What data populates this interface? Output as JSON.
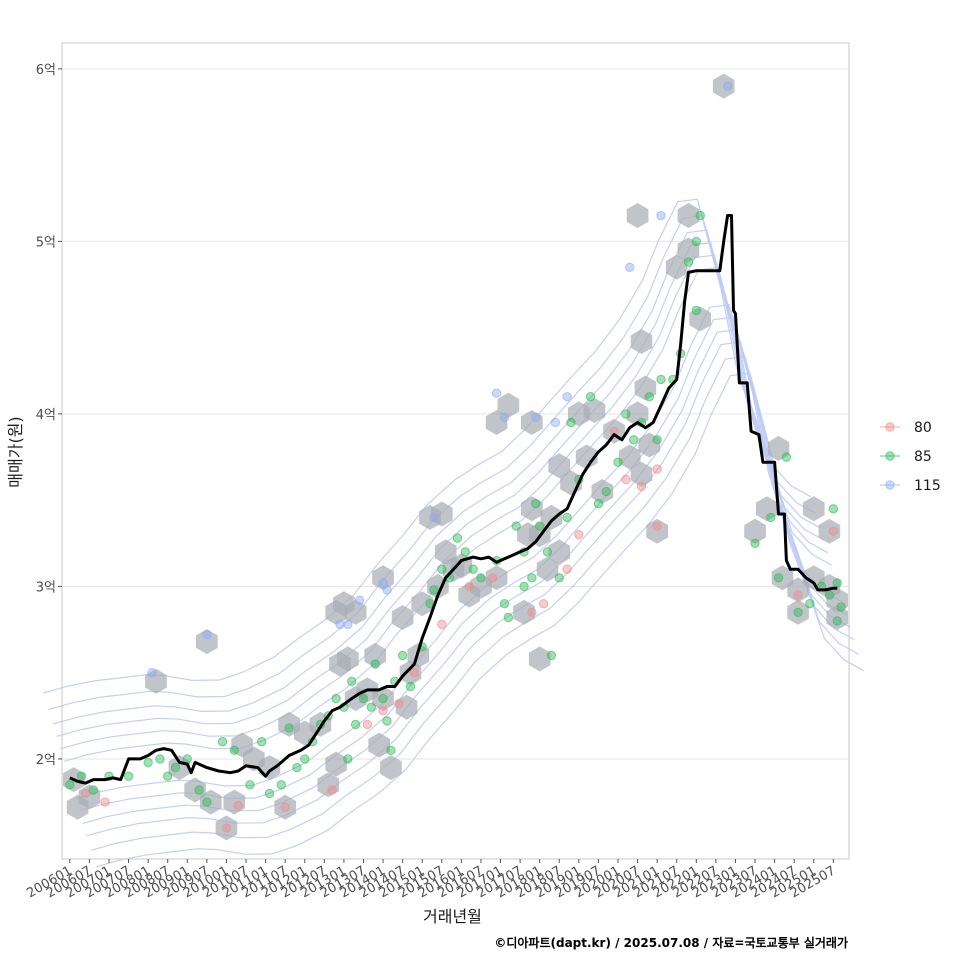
{
  "chart_data": {
    "type": "scatter",
    "title": "",
    "xlabel": "거래년월",
    "ylabel": "매매가(원)",
    "caption": "©디아파트(dapt.kr) / 2025.07.08 / 자료=국토교통부 실거래가",
    "x_ticks": [
      "200601",
      "200607",
      "200701",
      "200707",
      "200801",
      "200807",
      "200901",
      "200907",
      "201001",
      "201007",
      "201101",
      "201107",
      "201201",
      "201207",
      "201301",
      "201307",
      "201401",
      "201407",
      "201501",
      "201507",
      "201601",
      "201607",
      "201701",
      "201707",
      "201801",
      "201807",
      "201901",
      "201907",
      "202001",
      "202007",
      "202101",
      "202107",
      "202201",
      "202207",
      "202301",
      "202307",
      "202401",
      "202407",
      "202501",
      "202507"
    ],
    "y_ticks": [
      {
        "value": 2,
        "label": "2억"
      },
      {
        "value": 3,
        "label": "3억"
      },
      {
        "value": 4,
        "label": "4억"
      },
      {
        "value": 5,
        "label": "5억"
      },
      {
        "value": 6,
        "label": "6억"
      }
    ],
    "x_range": [
      2005.8,
      2025.9
    ],
    "y_range": [
      1.42,
      6.15
    ],
    "grid": true,
    "legend_position": "right",
    "legend": [
      {
        "name": "80",
        "color": "#f08a8a"
      },
      {
        "name": "85",
        "color": "#2dbb55"
      },
      {
        "name": "115",
        "color": "#8aaaf5"
      }
    ],
    "colors": {
      "hexbin": "#a7adb3",
      "contour": "#bccbf5",
      "trend": "#000000"
    },
    "trend_line": [
      [
        2006.0,
        1.89
      ],
      [
        2006.2,
        1.87
      ],
      [
        2006.4,
        1.86
      ],
      [
        2006.6,
        1.88
      ],
      [
        2006.9,
        1.88
      ],
      [
        2007.1,
        1.89
      ],
      [
        2007.3,
        1.88
      ],
      [
        2007.5,
        2.0
      ],
      [
        2007.8,
        2.0
      ],
      [
        2008.0,
        2.02
      ],
      [
        2008.2,
        2.05
      ],
      [
        2008.4,
        2.06
      ],
      [
        2008.6,
        2.05
      ],
      [
        2008.8,
        1.98
      ],
      [
        2009.0,
        1.97
      ],
      [
        2009.1,
        1.92
      ],
      [
        2009.2,
        1.98
      ],
      [
        2009.5,
        1.95
      ],
      [
        2009.8,
        1.93
      ],
      [
        2010.1,
        1.92
      ],
      [
        2010.3,
        1.93
      ],
      [
        2010.5,
        1.96
      ],
      [
        2010.8,
        1.95
      ],
      [
        2011.0,
        1.9
      ],
      [
        2011.1,
        1.93
      ],
      [
        2011.3,
        1.96
      ],
      [
        2011.6,
        2.02
      ],
      [
        2011.9,
        2.05
      ],
      [
        2012.1,
        2.08
      ],
      [
        2012.3,
        2.15
      ],
      [
        2012.5,
        2.22
      ],
      [
        2012.7,
        2.28
      ],
      [
        2012.9,
        2.3
      ],
      [
        2013.2,
        2.35
      ],
      [
        2013.4,
        2.38
      ],
      [
        2013.6,
        2.4
      ],
      [
        2013.9,
        2.4
      ],
      [
        2014.1,
        2.42
      ],
      [
        2014.3,
        2.42
      ],
      [
        2014.5,
        2.48
      ],
      [
        2014.8,
        2.55
      ],
      [
        2015.0,
        2.7
      ],
      [
        2015.2,
        2.82
      ],
      [
        2015.4,
        2.95
      ],
      [
        2015.6,
        3.05
      ],
      [
        2015.8,
        3.1
      ],
      [
        2016.0,
        3.15
      ],
      [
        2016.3,
        3.17
      ],
      [
        2016.5,
        3.16
      ],
      [
        2016.7,
        3.17
      ],
      [
        2016.9,
        3.14
      ],
      [
        2017.1,
        3.16
      ],
      [
        2017.3,
        3.18
      ],
      [
        2017.5,
        3.2
      ],
      [
        2017.7,
        3.22
      ],
      [
        2017.9,
        3.26
      ],
      [
        2018.1,
        3.32
      ],
      [
        2018.3,
        3.38
      ],
      [
        2018.5,
        3.42
      ],
      [
        2018.7,
        3.45
      ],
      [
        2018.9,
        3.55
      ],
      [
        2019.1,
        3.65
      ],
      [
        2019.3,
        3.72
      ],
      [
        2019.5,
        3.78
      ],
      [
        2019.7,
        3.82
      ],
      [
        2019.9,
        3.88
      ],
      [
        2020.1,
        3.85
      ],
      [
        2020.3,
        3.92
      ],
      [
        2020.5,
        3.95
      ],
      [
        2020.7,
        3.92
      ],
      [
        2020.9,
        3.95
      ],
      [
        2021.1,
        4.05
      ],
      [
        2021.3,
        4.15
      ],
      [
        2021.5,
        4.2
      ],
      [
        2021.6,
        4.4
      ],
      [
        2021.7,
        4.65
      ],
      [
        2021.8,
        4.82
      ],
      [
        2022.0,
        4.83
      ],
      [
        2022.2,
        4.83
      ],
      [
        2022.4,
        4.83
      ],
      [
        2022.6,
        4.83
      ],
      [
        2022.7,
        5.0
      ],
      [
        2022.8,
        5.15
      ],
      [
        2022.9,
        5.15
      ],
      [
        2022.95,
        4.6
      ],
      [
        2023.0,
        4.58
      ],
      [
        2023.1,
        4.18
      ],
      [
        2023.3,
        4.18
      ],
      [
        2023.4,
        3.9
      ],
      [
        2023.6,
        3.88
      ],
      [
        2023.7,
        3.72
      ],
      [
        2024.0,
        3.72
      ],
      [
        2024.1,
        3.42
      ],
      [
        2024.25,
        3.42
      ],
      [
        2024.3,
        3.15
      ],
      [
        2024.4,
        3.1
      ],
      [
        2024.6,
        3.1
      ],
      [
        2024.8,
        3.05
      ],
      [
        2025.0,
        3.02
      ],
      [
        2025.1,
        2.98
      ],
      [
        2025.3,
        2.98
      ],
      [
        2025.5,
        2.99
      ],
      [
        2025.6,
        2.99
      ]
    ],
    "hexbins": [
      [
        2006.1,
        1.88
      ],
      [
        2006.5,
        1.78
      ],
      [
        2006.2,
        1.72
      ],
      [
        2008.2,
        2.45
      ],
      [
        2009.5,
        2.68
      ],
      [
        2008.8,
        1.95
      ],
      [
        2009.2,
        1.82
      ],
      [
        2009.6,
        1.75
      ],
      [
        2010.0,
        1.6
      ],
      [
        2010.2,
        1.75
      ],
      [
        2010.4,
        2.08
      ],
      [
        2010.7,
        2.0
      ],
      [
        2011.1,
        1.95
      ],
      [
        2011.5,
        1.72
      ],
      [
        2011.6,
        2.2
      ],
      [
        2012.0,
        2.15
      ],
      [
        2012.4,
        2.2
      ],
      [
        2012.6,
        1.85
      ],
      [
        2012.8,
        1.97
      ],
      [
        2012.8,
        2.85
      ],
      [
        2013.0,
        2.9
      ],
      [
        2013.3,
        2.85
      ],
      [
        2012.9,
        2.55
      ],
      [
        2013.1,
        2.58
      ],
      [
        2013.3,
        2.35
      ],
      [
        2013.6,
        2.4
      ],
      [
        2013.8,
        2.6
      ],
      [
        2014.0,
        2.35
      ],
      [
        2013.9,
        2.08
      ],
      [
        2014.2,
        1.95
      ],
      [
        2014.0,
        3.05
      ],
      [
        2014.5,
        2.82
      ],
      [
        2014.7,
        2.5
      ],
      [
        2014.6,
        2.3
      ],
      [
        2014.9,
        2.6
      ],
      [
        2015.0,
        2.9
      ],
      [
        2015.2,
        3.4
      ],
      [
        2015.5,
        3.42
      ],
      [
        2015.6,
        3.2
      ],
      [
        2015.4,
        3.0
      ],
      [
        2015.8,
        3.1
      ],
      [
        2016.0,
        3.12
      ],
      [
        2016.2,
        2.95
      ],
      [
        2016.5,
        3.0
      ],
      [
        2016.9,
        3.05
      ],
      [
        2016.9,
        3.95
      ],
      [
        2017.2,
        4.05
      ],
      [
        2017.6,
        2.85
      ],
      [
        2018.0,
        2.58
      ],
      [
        2017.7,
        3.3
      ],
      [
        2017.8,
        3.45
      ],
      [
        2017.8,
        3.95
      ],
      [
        2018.2,
        3.1
      ],
      [
        2018.5,
        3.2
      ],
      [
        2018.0,
        3.3
      ],
      [
        2018.3,
        3.4
      ],
      [
        2018.5,
        3.7
      ],
      [
        2018.8,
        3.6
      ],
      [
        2019.0,
        4.0
      ],
      [
        2019.4,
        4.02
      ],
      [
        2019.2,
        3.75
      ],
      [
        2019.6,
        3.55
      ],
      [
        2019.9,
        3.9
      ],
      [
        2020.3,
        3.75
      ],
      [
        2020.5,
        4.0
      ],
      [
        2020.6,
        3.65
      ],
      [
        2020.7,
        4.15
      ],
      [
        2020.8,
        3.82
      ],
      [
        2020.6,
        4.42
      ],
      [
        2020.5,
        5.15
      ],
      [
        2021.0,
        3.32
      ],
      [
        2021.5,
        4.85
      ],
      [
        2021.8,
        5.15
      ],
      [
        2021.8,
        4.95
      ],
      [
        2022.1,
        4.55
      ],
      [
        2022.7,
        5.9
      ],
      [
        2023.5,
        3.32
      ],
      [
        2023.8,
        3.45
      ],
      [
        2024.1,
        3.8
      ],
      [
        2024.2,
        3.05
      ],
      [
        2024.6,
        2.98
      ],
      [
        2024.6,
        2.85
      ],
      [
        2025.0,
        3.05
      ],
      [
        2025.0,
        3.45
      ],
      [
        2025.4,
        3.32
      ],
      [
        2025.4,
        3.0
      ],
      [
        2025.6,
        2.92
      ],
      [
        2025.6,
        2.82
      ]
    ],
    "series": [
      {
        "name": "80",
        "points": [
          [
            2006.4,
            1.8
          ],
          [
            2006.9,
            1.75
          ],
          [
            2010.0,
            1.6
          ],
          [
            2010.3,
            1.73
          ],
          [
            2011.5,
            1.72
          ],
          [
            2012.7,
            1.82
          ],
          [
            2013.6,
            2.2
          ],
          [
            2014.0,
            2.28
          ],
          [
            2014.4,
            2.32
          ],
          [
            2014.8,
            2.5
          ],
          [
            2015.5,
            2.78
          ],
          [
            2016.2,
            3.0
          ],
          [
            2016.8,
            3.05
          ],
          [
            2017.8,
            2.85
          ],
          [
            2018.1,
            2.9
          ],
          [
            2018.7,
            3.1
          ],
          [
            2019.0,
            3.3
          ],
          [
            2019.9,
            3.9
          ],
          [
            2020.2,
            3.62
          ],
          [
            2020.6,
            3.58
          ],
          [
            2021.0,
            3.68
          ],
          [
            2021.0,
            3.35
          ],
          [
            2024.6,
            2.95
          ],
          [
            2025.5,
            3.32
          ]
        ]
      },
      {
        "name": "85",
        "points": [
          [
            2006.0,
            1.85
          ],
          [
            2006.3,
            1.9
          ],
          [
            2006.6,
            1.82
          ],
          [
            2007.0,
            1.9
          ],
          [
            2007.5,
            1.9
          ],
          [
            2008.0,
            1.98
          ],
          [
            2008.3,
            2.0
          ],
          [
            2008.5,
            1.9
          ],
          [
            2008.7,
            1.95
          ],
          [
            2009.0,
            2.0
          ],
          [
            2009.3,
            1.82
          ],
          [
            2009.5,
            1.75
          ],
          [
            2009.9,
            2.1
          ],
          [
            2010.2,
            2.05
          ],
          [
            2010.6,
            1.85
          ],
          [
            2010.9,
            2.1
          ],
          [
            2011.1,
            1.8
          ],
          [
            2011.4,
            1.85
          ],
          [
            2011.6,
            2.18
          ],
          [
            2011.8,
            1.95
          ],
          [
            2012.0,
            2.0
          ],
          [
            2012.2,
            2.1
          ],
          [
            2012.4,
            2.2
          ],
          [
            2012.6,
            2.25
          ],
          [
            2012.8,
            2.35
          ],
          [
            2013.0,
            2.3
          ],
          [
            2013.1,
            2.0
          ],
          [
            2013.2,
            2.45
          ],
          [
            2013.3,
            2.2
          ],
          [
            2013.5,
            2.35
          ],
          [
            2013.7,
            2.3
          ],
          [
            2013.8,
            2.55
          ],
          [
            2014.0,
            2.35
          ],
          [
            2014.1,
            2.22
          ],
          [
            2014.2,
            2.05
          ],
          [
            2014.3,
            2.45
          ],
          [
            2014.5,
            2.6
          ],
          [
            2014.7,
            2.42
          ],
          [
            2015.0,
            2.65
          ],
          [
            2015.2,
            2.9
          ],
          [
            2015.3,
            2.98
          ],
          [
            2015.5,
            3.1
          ],
          [
            2015.7,
            3.05
          ],
          [
            2015.9,
            3.28
          ],
          [
            2016.1,
            3.2
          ],
          [
            2016.3,
            3.1
          ],
          [
            2016.5,
            3.05
          ],
          [
            2016.9,
            3.15
          ],
          [
            2017.1,
            2.9
          ],
          [
            2017.2,
            2.82
          ],
          [
            2017.4,
            3.35
          ],
          [
            2017.6,
            3.2
          ],
          [
            2017.6,
            3.0
          ],
          [
            2017.8,
            3.05
          ],
          [
            2017.9,
            3.48
          ],
          [
            2018.0,
            3.35
          ],
          [
            2018.2,
            3.2
          ],
          [
            2018.3,
            2.6
          ],
          [
            2018.5,
            3.05
          ],
          [
            2018.7,
            3.4
          ],
          [
            2018.8,
            3.95
          ],
          [
            2019.0,
            3.62
          ],
          [
            2019.3,
            4.1
          ],
          [
            2019.5,
            3.48
          ],
          [
            2019.7,
            3.55
          ],
          [
            2020.0,
            3.72
          ],
          [
            2020.2,
            4.0
          ],
          [
            2020.4,
            3.85
          ],
          [
            2020.6,
            3.95
          ],
          [
            2020.8,
            4.1
          ],
          [
            2021.0,
            3.85
          ],
          [
            2021.1,
            4.2
          ],
          [
            2021.4,
            4.2
          ],
          [
            2021.6,
            4.35
          ],
          [
            2021.8,
            4.88
          ],
          [
            2022.0,
            4.6
          ],
          [
            2022.0,
            5.0
          ],
          [
            2022.1,
            5.15
          ],
          [
            2023.5,
            3.25
          ],
          [
            2023.9,
            3.4
          ],
          [
            2024.1,
            3.05
          ],
          [
            2024.3,
            3.75
          ],
          [
            2024.6,
            2.85
          ],
          [
            2024.9,
            2.9
          ],
          [
            2025.2,
            3.0
          ],
          [
            2025.4,
            2.95
          ],
          [
            2025.5,
            3.45
          ],
          [
            2025.6,
            3.02
          ],
          [
            2025.7,
            2.88
          ],
          [
            2025.6,
            2.8
          ]
        ]
      },
      {
        "name": "115",
        "points": [
          [
            2008.1,
            2.5
          ],
          [
            2009.5,
            2.72
          ],
          [
            2012.9,
            2.78
          ],
          [
            2013.1,
            2.78
          ],
          [
            2013.4,
            2.92
          ],
          [
            2014.0,
            3.02
          ],
          [
            2014.1,
            2.98
          ],
          [
            2015.3,
            3.4
          ],
          [
            2016.9,
            4.12
          ],
          [
            2017.1,
            3.98
          ],
          [
            2017.9,
            3.98
          ],
          [
            2018.4,
            3.95
          ],
          [
            2018.7,
            4.1
          ],
          [
            2020.3,
            4.85
          ],
          [
            2021.1,
            5.15
          ],
          [
            2022.8,
            5.9
          ]
        ]
      }
    ]
  }
}
